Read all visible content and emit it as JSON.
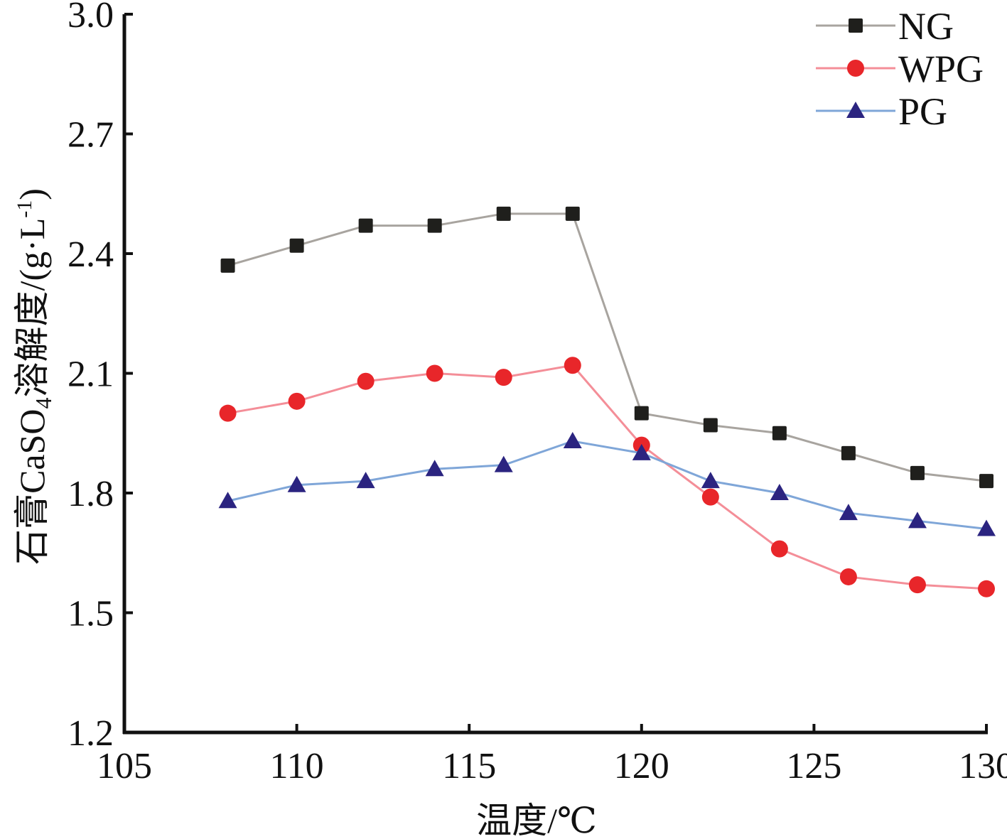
{
  "chart_data": {
    "type": "line",
    "title": "",
    "xlabel": "温度/℃",
    "ylabel_parts": {
      "main": "石膏CaSO",
      "sub": "4",
      "rest": "溶解度/(g·L",
      "sup": "-1",
      "close": ")"
    },
    "xlim": [
      105,
      130
    ],
    "ylim": [
      1.2,
      3.0
    ],
    "x_ticks": [
      105,
      110,
      115,
      120,
      125,
      130
    ],
    "x_tick_labels": [
      "105",
      "110",
      "115",
      "120",
      "125",
      "130"
    ],
    "y_ticks": [
      1.2,
      1.5,
      1.8,
      2.1,
      2.4,
      2.7,
      3.0
    ],
    "y_tick_labels": [
      "1.2",
      "1.5",
      "1.8",
      "2.1",
      "2.4",
      "2.7",
      "3.0"
    ],
    "grid": false,
    "legend_position": "top-right",
    "x": [
      108,
      110,
      112,
      114,
      116,
      118,
      120,
      122,
      124,
      126,
      128,
      130
    ],
    "series": [
      {
        "name": "NG",
        "marker": "square",
        "line_color": "#a8a49f",
        "marker_color": "#1f1f1c",
        "values": [
          2.37,
          2.42,
          2.47,
          2.47,
          2.5,
          2.5,
          2.0,
          1.97,
          1.95,
          1.9,
          1.85,
          1.83
        ]
      },
      {
        "name": "WPG",
        "marker": "circle",
        "line_color": "#f48e98",
        "marker_color": "#e8262a",
        "values": [
          2.0,
          2.03,
          2.08,
          2.1,
          2.09,
          2.12,
          1.92,
          1.79,
          1.66,
          1.59,
          1.57,
          1.56
        ]
      },
      {
        "name": "PG",
        "marker": "triangle",
        "line_color": "#7fa6d8",
        "marker_color": "#2b2480",
        "values": [
          1.78,
          1.82,
          1.83,
          1.86,
          1.87,
          1.93,
          1.9,
          1.83,
          1.8,
          1.75,
          1.73,
          1.71
        ]
      }
    ]
  }
}
